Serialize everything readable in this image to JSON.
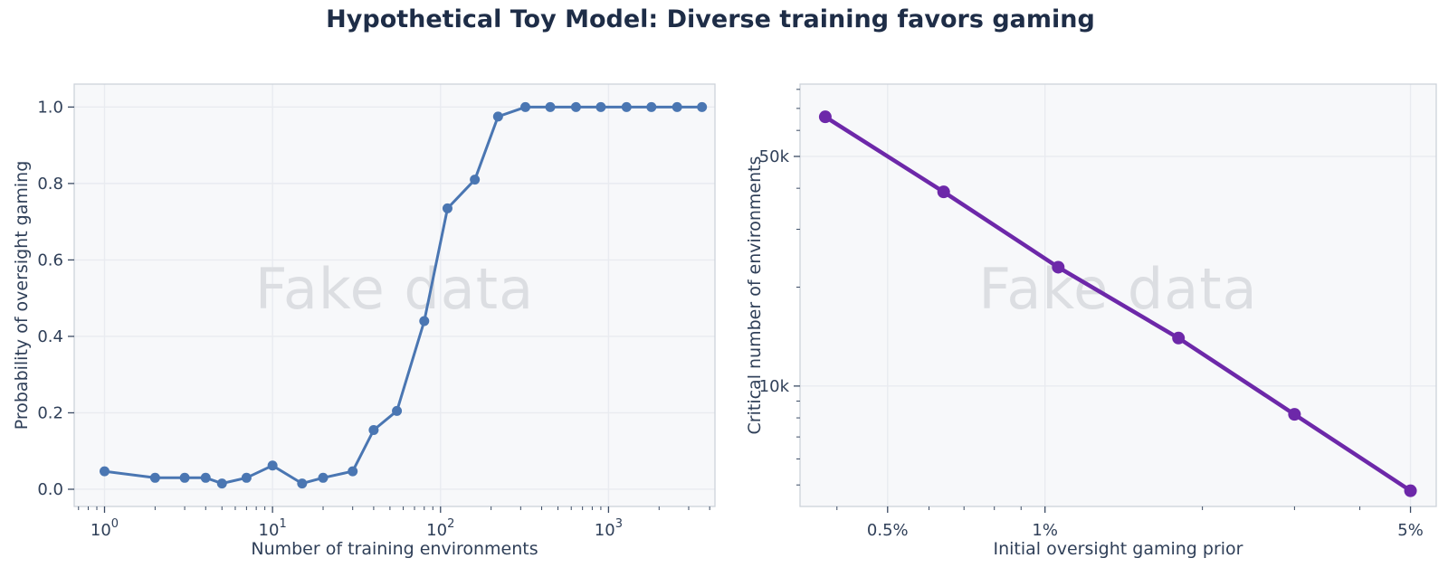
{
  "title": "Hypothetical Toy Model: Diverse training favors gaming",
  "watermark": "Fake data",
  "colors": {
    "background": "#ffffff",
    "plot_background": "#f7f8fa",
    "grid": "#e9ebf0",
    "spine": "#cdd2da",
    "tick": "#3a4a63",
    "text": "#2f3f58",
    "title_text": "#1e2d47",
    "watermark_text": "#dcdee2",
    "blue": "#4a76b2",
    "purple": "#6d28a9"
  },
  "chart_data": [
    {
      "type": "line",
      "name": "oversight-gaming-probability",
      "title": "",
      "xlabel": "Number of training environments",
      "ylabel": "Probability of oversight gaming",
      "xscale": "log",
      "yscale": "linear",
      "x": [
        1,
        2,
        3,
        4,
        5,
        7,
        10,
        15,
        20,
        30,
        40,
        55,
        80,
        110,
        160,
        220,
        320,
        450,
        640,
        900,
        1280,
        1800,
        2560,
        3600
      ],
      "y": [
        0.047,
        0.03,
        0.03,
        0.03,
        0.015,
        0.03,
        0.062,
        0.015,
        0.03,
        0.047,
        0.155,
        0.205,
        0.44,
        0.735,
        0.81,
        0.975,
        1.0,
        1.0,
        1.0,
        1.0,
        1.0,
        1.0,
        1.0,
        1.0
      ],
      "xlim": [
        0.66,
        4300
      ],
      "ylim": [
        -0.045,
        1.06
      ],
      "xticks": {
        "values": [
          1,
          10,
          100,
          1000
        ],
        "labels": [
          "10^0",
          "10^1",
          "10^2",
          "10^3"
        ]
      },
      "xminor": [
        0.7,
        0.8,
        0.9,
        2,
        3,
        4,
        5,
        6,
        7,
        8,
        9,
        20,
        30,
        40,
        50,
        60,
        70,
        80,
        90,
        200,
        300,
        400,
        500,
        600,
        700,
        800,
        900,
        2000,
        3000,
        4000
      ],
      "yticks": {
        "values": [
          0,
          0.2,
          0.4,
          0.6,
          0.8,
          1
        ],
        "labels": [
          "0.0",
          "0.2",
          "0.4",
          "0.6",
          "0.8",
          "1.0"
        ]
      },
      "yminor": [],
      "grid": true,
      "legend": null,
      "color_key": "blue",
      "line_width": 3,
      "marker_radius": 5.5
    },
    {
      "type": "line",
      "name": "critical-environments",
      "title": "",
      "xlabel": "Initial oversight gaming prior",
      "ylabel": "Critical number of environments",
      "xscale": "log",
      "yscale": "log",
      "x_unit": "%",
      "x": [
        0.38,
        0.64,
        1.06,
        1.8,
        3.0,
        5.0
      ],
      "y": [
        66000,
        39000,
        23000,
        14000,
        8200,
        4800
      ],
      "xlim": [
        0.34,
        5.6
      ],
      "ylim": [
        4300,
        83000
      ],
      "xticks": {
        "values": [
          0.5,
          1,
          5
        ],
        "labels": [
          "0.5%",
          "1%",
          "5%"
        ]
      },
      "xminor": [
        0.4,
        0.6,
        0.7,
        0.8,
        0.9,
        2,
        3,
        4
      ],
      "yticks": {
        "values": [
          10000,
          50000
        ],
        "labels": [
          "10k",
          "50k"
        ]
      },
      "yminor": [
        5000,
        6000,
        7000,
        8000,
        9000,
        20000,
        30000,
        40000,
        60000,
        70000,
        80000
      ],
      "grid": true,
      "legend": null,
      "color_key": "purple",
      "line_width": 4.5,
      "marker_radius": 7
    }
  ]
}
